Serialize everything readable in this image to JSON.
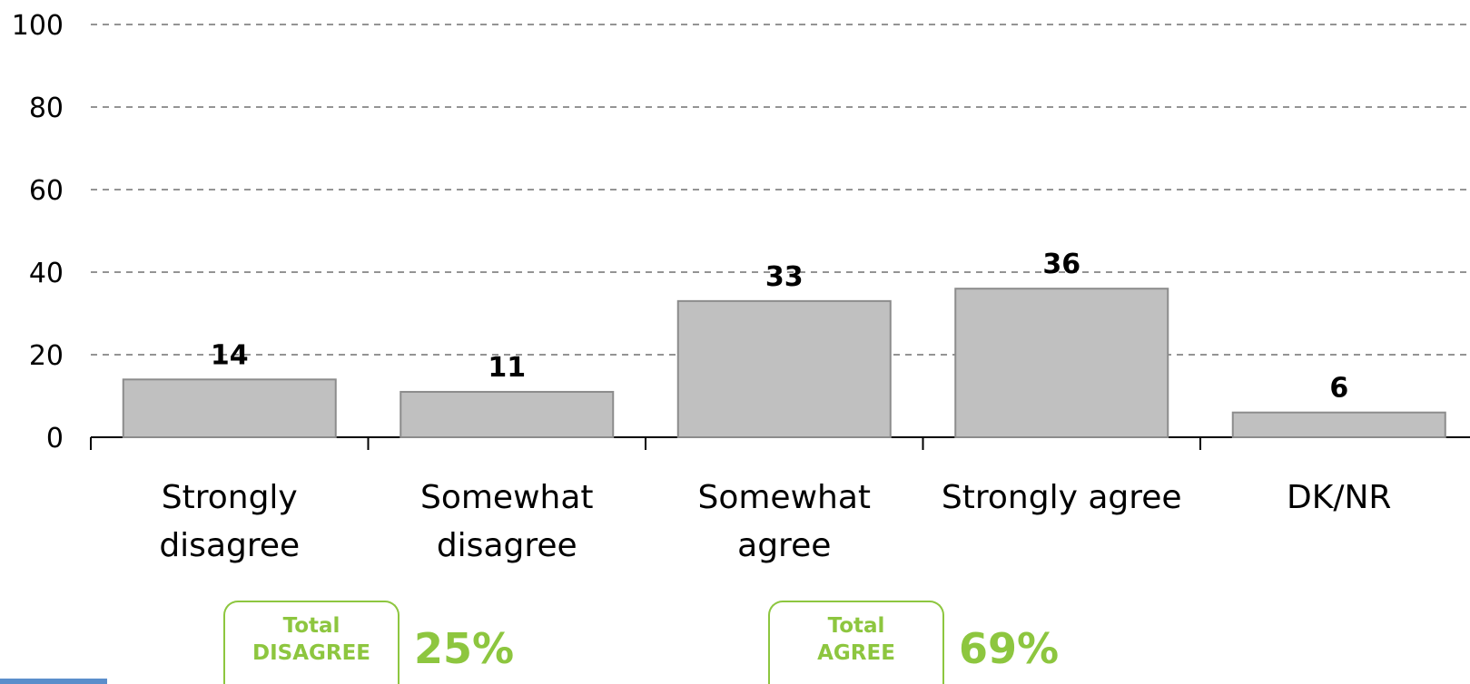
{
  "chart_data": {
    "type": "bar",
    "categories": [
      [
        "Strongly",
        "disagree"
      ],
      [
        "Somewhat",
        "disagree"
      ],
      [
        "Somewhat",
        "agree"
      ],
      [
        "Strongly agree"
      ],
      [
        "DK/NR"
      ]
    ],
    "values": [
      14,
      11,
      33,
      36,
      6
    ],
    "ylim": [
      0,
      100
    ],
    "yticks": [
      0,
      20,
      40,
      60,
      80,
      100
    ],
    "grid": true,
    "bar_color": "#c0c0c0"
  },
  "summaries": {
    "disagree": {
      "label_line1": "Total",
      "label_line2": "DISAGREE",
      "value": "25%"
    },
    "agree": {
      "label_line1": "Total",
      "label_line2": "AGREE",
      "value": "69%"
    }
  },
  "colors": {
    "accent": "#8dc63f",
    "corner": "#5b8ecb"
  }
}
